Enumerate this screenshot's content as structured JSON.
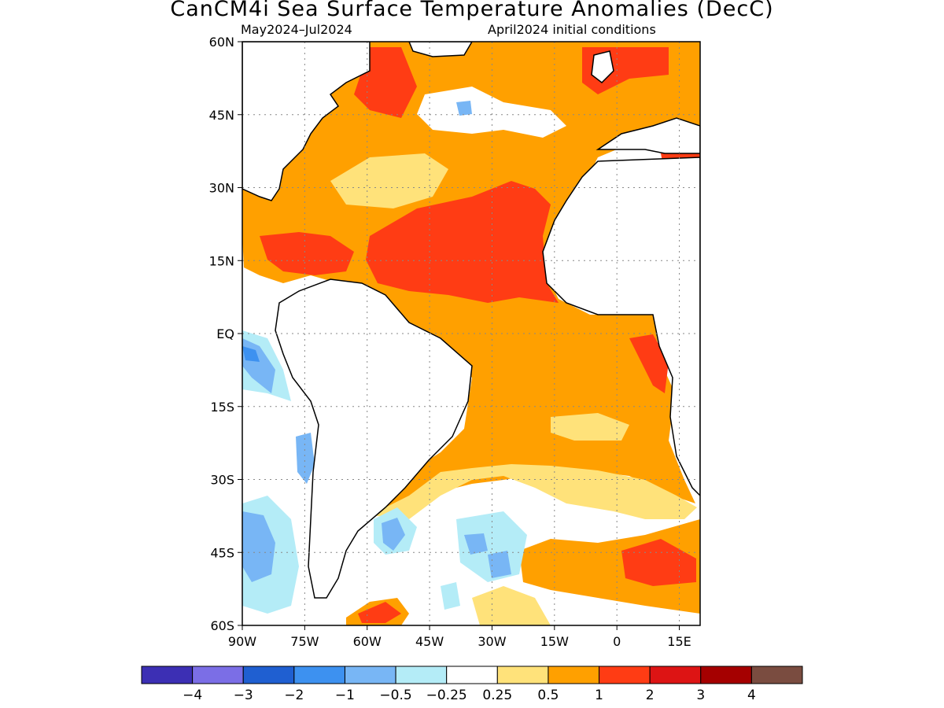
{
  "title": "CanCM4i Sea Surface Temperature Anomalies (DecC)",
  "subtitle_left": "May2024–Jul2024",
  "subtitle_right": "April2024 initial conditions",
  "map": {
    "lon_range": [
      -90,
      20
    ],
    "lat_range": [
      -60,
      60
    ],
    "lon_ticks": [
      {
        "value": -90,
        "label": "90W"
      },
      {
        "value": -75,
        "label": "75W"
      },
      {
        "value": -60,
        "label": "60W"
      },
      {
        "value": -45,
        "label": "45W"
      },
      {
        "value": -30,
        "label": "30W"
      },
      {
        "value": -15,
        "label": "15W"
      },
      {
        "value": 0,
        "label": "0"
      },
      {
        "value": 15,
        "label": "15E"
      }
    ],
    "lat_ticks": [
      {
        "value": 60,
        "label": "60N"
      },
      {
        "value": 45,
        "label": "45N"
      },
      {
        "value": 30,
        "label": "30N"
      },
      {
        "value": 15,
        "label": "15N"
      },
      {
        "value": 0,
        "label": "EQ"
      },
      {
        "value": -15,
        "label": "15S"
      },
      {
        "value": -30,
        "label": "30S"
      },
      {
        "value": -45,
        "label": "45S"
      },
      {
        "value": -60,
        "label": "60S"
      }
    ],
    "gridlines": "dotted"
  },
  "colorbar": {
    "colors": [
      "#3c2fb4",
      "#7b6ee6",
      "#1f5fd1",
      "#3d91f0",
      "#78b6f5",
      "#b4ecf7",
      "#ffffff",
      "#ffe27a",
      "#ffa000",
      "#ff3c14",
      "#dd1414",
      "#a50000",
      "#7a4c40"
    ],
    "labels": [
      "−4",
      "−3",
      "−2",
      "−1",
      "−0.5",
      "−0.25",
      "0.25",
      "0.5",
      "1",
      "2",
      "3",
      "4"
    ]
  }
}
